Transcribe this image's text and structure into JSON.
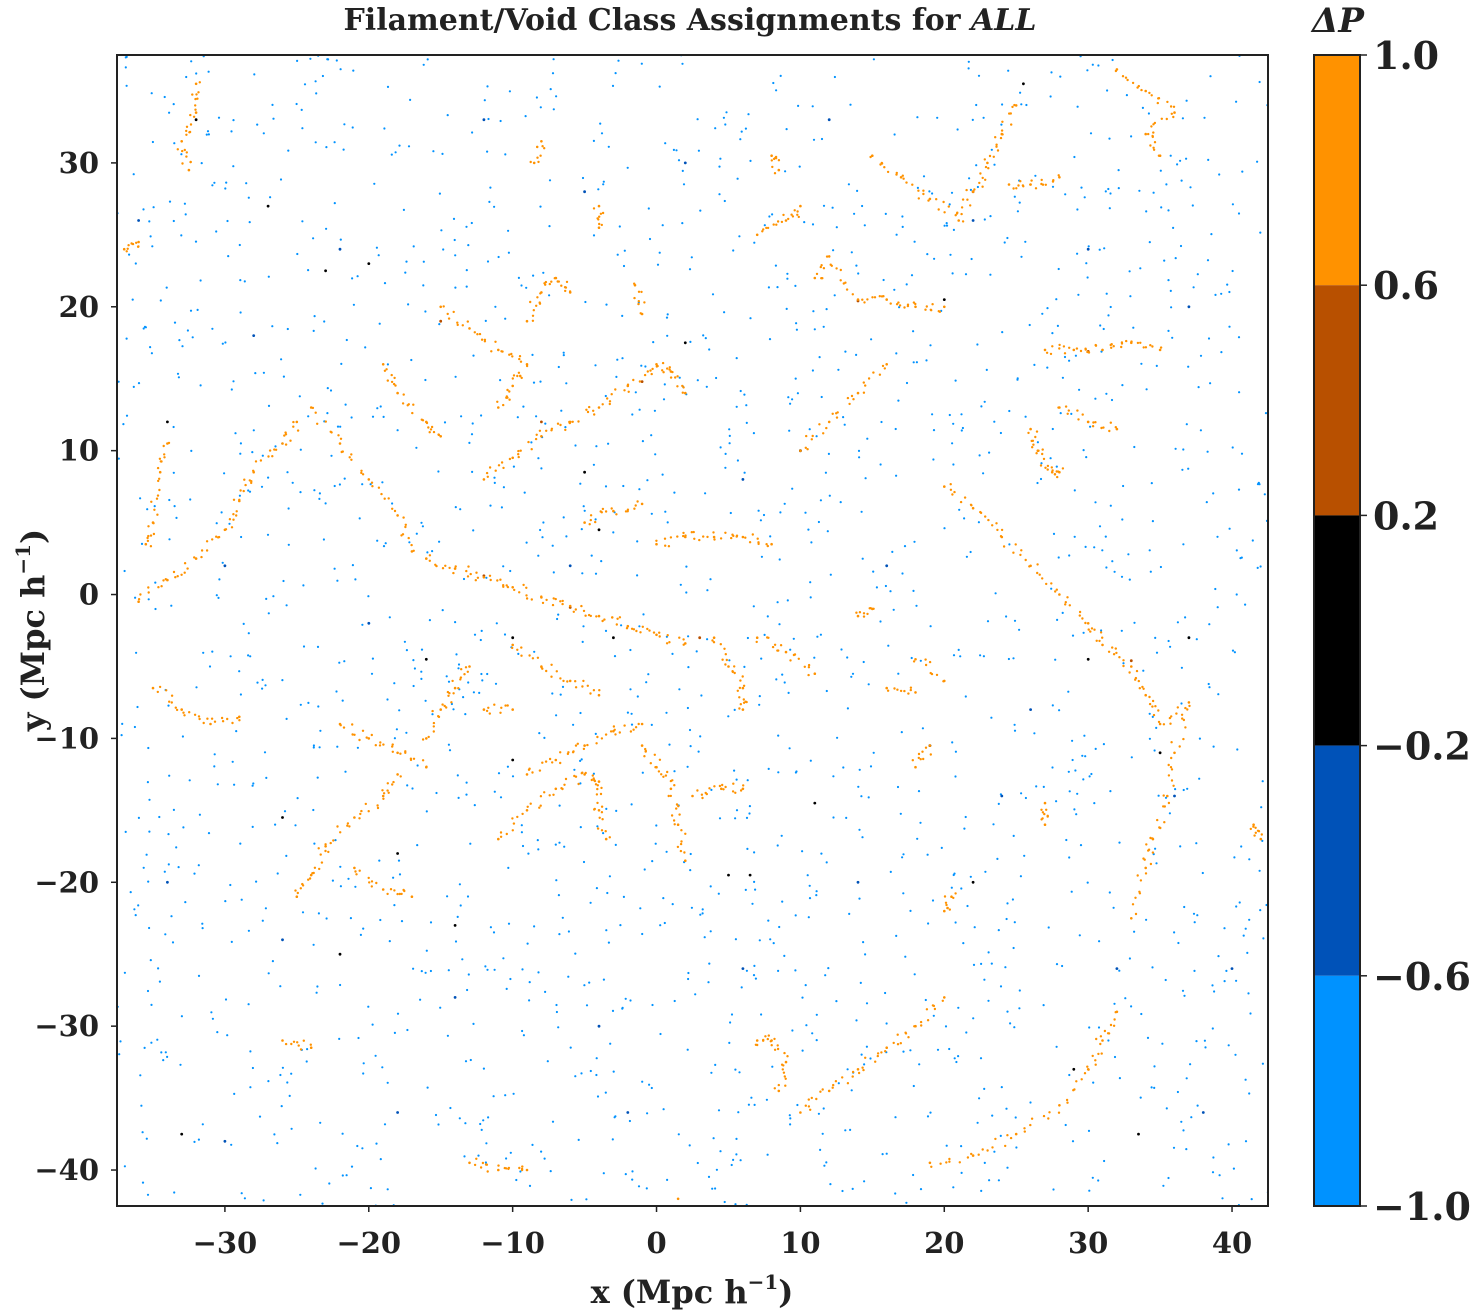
{
  "chart_data": {
    "type": "scatter",
    "title_prefix": "Filament/Void Class Assignments for ",
    "title_emph": "ALL",
    "xlabel": "x (Mpc h",
    "ylabel": "y (Mpc h",
    "label_exponent": "−1",
    "label_suffix": ")",
    "xlim": [
      -37.5,
      42.5
    ],
    "ylim": [
      -42.5,
      37.5
    ],
    "x_ticks": [
      -30,
      -20,
      -10,
      0,
      10,
      20,
      30,
      40
    ],
    "x_tick_labels": [
      "−30",
      "−20",
      "−10",
      "0",
      "10",
      "20",
      "30",
      "40"
    ],
    "y_ticks": [
      -40,
      -30,
      -20,
      -10,
      0,
      10,
      20,
      30
    ],
    "y_tick_labels": [
      "−40",
      "−30",
      "−20",
      "−10",
      "0",
      "10",
      "20",
      "30"
    ],
    "grid": false,
    "colorbar": {
      "label": "ΔP",
      "range": [
        -1.0,
        1.0
      ],
      "ticks": [
        1.0,
        0.6,
        0.2,
        -0.2,
        -0.6,
        -1.0
      ],
      "tick_labels": [
        "1.0",
        "0.6",
        "0.2",
        "−0.2",
        "−0.6",
        "−1.0"
      ],
      "bins": [
        {
          "from": 0.6,
          "to": 1.0,
          "color": "#ff9200"
        },
        {
          "from": 0.2,
          "to": 0.6,
          "color": "#b85000"
        },
        {
          "from": -0.2,
          "to": 0.2,
          "color": "#000000"
        },
        {
          "from": -0.6,
          "to": -0.2,
          "color": "#0052b8"
        },
        {
          "from": -1.0,
          "to": -0.6,
          "color": "#0092ff"
        }
      ]
    },
    "series": [
      {
        "class": "filament",
        "delta_p": 0.9,
        "color": "#ff9200",
        "points": [
          [
            -16,
            2.5
          ],
          [
            -14,
            1.8
          ],
          [
            -12,
            1.2
          ],
          [
            -10,
            0.5
          ],
          [
            -8,
            -0.2
          ],
          [
            -6,
            -0.8
          ],
          [
            -4,
            -1.5
          ],
          [
            -2,
            -2.2
          ],
          [
            0,
            -2.8
          ],
          [
            2,
            -3.4
          ],
          [
            -36,
            -0.5
          ],
          [
            -34,
            1.0
          ],
          [
            -32,
            2.5
          ],
          [
            -30,
            4.5
          ],
          [
            -29,
            6.5
          ],
          [
            -28,
            8.5
          ],
          [
            -26,
            10.5
          ],
          [
            -25,
            12.0
          ],
          [
            -35,
            -6.5
          ],
          [
            -33,
            -8.0
          ],
          [
            -31,
            -9.0
          ],
          [
            -29,
            -8.5
          ],
          [
            -12,
            8.0
          ],
          [
            -10,
            9.5
          ],
          [
            -8,
            11.0
          ],
          [
            -6,
            12.0
          ],
          [
            -4,
            13.0
          ],
          [
            -2,
            14.5
          ],
          [
            0,
            16.0
          ],
          [
            1,
            15.5
          ],
          [
            2,
            14.0
          ],
          [
            -15,
            20.0
          ],
          [
            -13,
            18.5
          ],
          [
            -11,
            17.0
          ],
          [
            -9,
            16.0
          ],
          [
            -10,
            14.5
          ],
          [
            -11,
            13.0
          ],
          [
            -9,
            19.0
          ],
          [
            -8,
            21.0
          ],
          [
            -7,
            22.0
          ],
          [
            -6,
            21.0
          ],
          [
            -19,
            16.0
          ],
          [
            -18,
            14.0
          ],
          [
            -16,
            12.0
          ],
          [
            -15,
            11.0
          ],
          [
            -24,
            13.0
          ],
          [
            -22,
            10.5
          ],
          [
            -20,
            8.0
          ],
          [
            -18,
            5.5
          ],
          [
            -17,
            3.0
          ],
          [
            -13,
            -5.0
          ],
          [
            -14,
            -6.5
          ],
          [
            -15,
            -8.0
          ],
          [
            -16,
            -10.0
          ],
          [
            -22,
            -9.0
          ],
          [
            -20,
            -10.0
          ],
          [
            -18,
            -11.0
          ],
          [
            -16,
            -12.0
          ],
          [
            -25,
            -21.0
          ],
          [
            -24,
            -19.5
          ],
          [
            -23,
            -17.5
          ],
          [
            -21,
            -15.5
          ],
          [
            -19,
            -14.0
          ],
          [
            -18,
            -12.5
          ],
          [
            -21,
            -19.0
          ],
          [
            -19,
            -20.5
          ],
          [
            -17,
            -21.0
          ],
          [
            -10,
            -3.5
          ],
          [
            -8,
            -5.0
          ],
          [
            -6,
            -6.0
          ],
          [
            -4,
            -7.0
          ],
          [
            -12,
            -8.0
          ],
          [
            -10,
            -8.0
          ],
          [
            -9,
            -12.5
          ],
          [
            -7,
            -11.5
          ],
          [
            -5,
            -10.5
          ],
          [
            -3,
            -9.5
          ],
          [
            -1,
            -9.0
          ],
          [
            -11,
            -17.0
          ],
          [
            -9,
            -15.0
          ],
          [
            -7,
            -13.5
          ],
          [
            -5,
            -12.5
          ],
          [
            -4,
            -13.0
          ],
          [
            -4,
            -15.0
          ],
          [
            -3.5,
            -17.0
          ],
          [
            -1,
            -10.5
          ],
          [
            0,
            -12.0
          ],
          [
            1,
            -13.5
          ],
          [
            1.5,
            -16.0
          ],
          [
            2,
            -18.5
          ],
          [
            2.5,
            -14.0
          ],
          [
            4.5,
            -13.5
          ],
          [
            6,
            -13.5
          ],
          [
            4,
            -3.0
          ],
          [
            5,
            -5.0
          ],
          [
            6,
            -6.5
          ],
          [
            6,
            -8.0
          ],
          [
            7,
            -3.0
          ],
          [
            9,
            -4.0
          ],
          [
            11,
            -5.5
          ],
          [
            0,
            3.5
          ],
          [
            2,
            4.0
          ],
          [
            4,
            4.0
          ],
          [
            6,
            4.0
          ],
          [
            8,
            3.5
          ],
          [
            -5,
            5.0
          ],
          [
            -3,
            5.8
          ],
          [
            -1,
            6.3
          ],
          [
            7,
            25.0
          ],
          [
            9,
            26.0
          ],
          [
            10,
            27.0
          ],
          [
            11,
            22.0
          ],
          [
            12,
            23.5
          ],
          [
            14,
            20.5
          ],
          [
            16,
            20.5
          ],
          [
            18,
            20.0
          ],
          [
            20,
            20.0
          ],
          [
            10,
            10.0
          ],
          [
            12,
            12.0
          ],
          [
            14,
            14.0
          ],
          [
            16,
            16.0
          ],
          [
            15,
            30.5
          ],
          [
            17,
            29.0
          ],
          [
            19,
            27.5
          ],
          [
            21,
            26.0
          ],
          [
            22,
            28.0
          ],
          [
            23,
            30.0
          ],
          [
            24,
            32.0
          ],
          [
            25,
            34.0
          ],
          [
            24.5,
            28.5
          ],
          [
            26,
            28.5
          ],
          [
            28,
            29.0
          ],
          [
            27,
            17.0
          ],
          [
            29,
            17.0
          ],
          [
            31,
            17.0
          ],
          [
            33,
            17.5
          ],
          [
            35,
            17.0
          ],
          [
            32,
            36.5
          ],
          [
            34,
            35.0
          ],
          [
            36,
            33.5
          ],
          [
            34,
            32.0
          ],
          [
            35,
            30.5
          ],
          [
            28,
            13.0
          ],
          [
            30,
            12.0
          ],
          [
            32,
            11.5
          ],
          [
            26,
            11.5
          ],
          [
            26.5,
            10.0
          ],
          [
            27.5,
            8.5
          ],
          [
            28,
            8.5
          ],
          [
            20,
            7.5
          ],
          [
            22,
            6.0
          ],
          [
            24,
            4.0
          ],
          [
            26,
            2.0
          ],
          [
            28,
            0.0
          ],
          [
            30,
            -2.0
          ],
          [
            31,
            -3.5
          ],
          [
            33,
            -5.0
          ],
          [
            34,
            -7.0
          ],
          [
            35,
            -9.0
          ],
          [
            37,
            -7.5
          ],
          [
            36,
            -11.0
          ],
          [
            35.5,
            -14.0
          ],
          [
            34.5,
            -17.0
          ],
          [
            34,
            -19.0
          ],
          [
            33,
            -22.5
          ],
          [
            20,
            -28.0
          ],
          [
            18,
            -30.0
          ],
          [
            16,
            -31.5
          ],
          [
            14,
            -33.0
          ],
          [
            12,
            -34.5
          ],
          [
            10,
            -36.0
          ],
          [
            19,
            -39.5
          ],
          [
            22,
            -39.0
          ],
          [
            25,
            -37.5
          ],
          [
            28,
            -35.5
          ],
          [
            30,
            -33.0
          ],
          [
            31,
            -31.0
          ],
          [
            32,
            -29.0
          ],
          [
            7,
            -31.0
          ],
          [
            8,
            -31.0
          ],
          [
            9,
            -32.5
          ],
          [
            8.5,
            -34.5
          ],
          [
            -26,
            -31.0
          ],
          [
            -24,
            -31.5
          ],
          [
            -13,
            -39.5
          ],
          [
            -11,
            -40.0
          ],
          [
            -9,
            -40.0
          ],
          [
            1.5,
            -42.0
          ],
          [
            -32,
            35.5
          ],
          [
            -32,
            33.5
          ],
          [
            -33,
            31.5
          ],
          [
            -32.5,
            29.5
          ],
          [
            -37,
            24.0
          ],
          [
            -36,
            24.5
          ],
          [
            -34,
            10.5
          ],
          [
            -34.5,
            8.5
          ],
          [
            -35,
            5.0
          ],
          [
            -35.5,
            3.5
          ],
          [
            -8,
            31.5
          ],
          [
            -8.5,
            30.0
          ],
          [
            -4,
            27.0
          ],
          [
            -4,
            25.5
          ],
          [
            -1.5,
            21.5
          ],
          [
            -1,
            19.5
          ],
          [
            8,
            30.5
          ],
          [
            8.5,
            29.5
          ],
          [
            18,
            -4.5
          ],
          [
            20,
            -6.0
          ],
          [
            14,
            -1.5
          ],
          [
            15,
            -1.0
          ],
          [
            18,
            -12.0
          ],
          [
            19,
            -10.5
          ],
          [
            27,
            -16.0
          ],
          [
            27,
            -14.5
          ],
          [
            20,
            -22.0
          ],
          [
            20.5,
            -21.0
          ],
          [
            41.5,
            -16.0
          ],
          [
            42,
            -17.0
          ],
          [
            16,
            -6.5
          ],
          [
            18,
            -6.8
          ]
        ]
      },
      {
        "class": "uncertain-filament",
        "delta_p": 0.4,
        "color": "#b85000",
        "points": [
          [
            -12,
            1.3
          ],
          [
            -6,
            -0.9
          ],
          [
            -1,
            14.8
          ],
          [
            -15,
            19.0
          ],
          [
            3,
            -3.0
          ],
          [
            22,
            28.0
          ],
          [
            30,
            16.9
          ],
          [
            33,
            -4.6
          ],
          [
            -8,
            12.0
          ],
          [
            14,
            20.4
          ]
        ]
      },
      {
        "class": "neutral",
        "delta_p": 0.0,
        "color": "#000000",
        "points": [
          [
            -20,
            23.0
          ],
          [
            -32,
            33.0
          ],
          [
            -27,
            27.0
          ],
          [
            25.5,
            35.5
          ],
          [
            -34,
            12.0
          ],
          [
            -23,
            22.5
          ],
          [
            -5,
            8.5
          ],
          [
            10,
            10.0
          ],
          [
            5,
            -19.5
          ],
          [
            6.5,
            -19.5
          ],
          [
            -3,
            -3.0
          ],
          [
            -10,
            -3.0
          ],
          [
            -16,
            -4.5
          ],
          [
            22,
            -20.0
          ],
          [
            29,
            -33.0
          ],
          [
            35,
            -11.0
          ],
          [
            30,
            -4.5
          ],
          [
            33.5,
            -37.5
          ],
          [
            -4,
            4.5
          ],
          [
            -22,
            -25.0
          ],
          [
            -18,
            -18.0
          ],
          [
            -26,
            -15.5
          ],
          [
            2,
            17.5
          ],
          [
            19,
            -10.5
          ],
          [
            11,
            -14.5
          ],
          [
            -33,
            -37.5
          ],
          [
            20,
            20.5
          ],
          [
            -14,
            -23.0
          ],
          [
            37,
            -3.0
          ],
          [
            -10,
            -11.5
          ]
        ]
      },
      {
        "class": "uncertain-void",
        "delta_p": -0.4,
        "color": "#0052b8",
        "points": [
          [
            -36,
            26.0
          ],
          [
            -28,
            18.0
          ],
          [
            -22,
            24.0
          ],
          [
            -12,
            33.0
          ],
          [
            -5,
            28.0
          ],
          [
            2,
            30.0
          ],
          [
            12,
            33.0
          ],
          [
            22,
            26.0
          ],
          [
            30,
            24.0
          ],
          [
            37,
            20.0
          ],
          [
            -30,
            2.0
          ],
          [
            -20,
            -2.0
          ],
          [
            -6,
            2.0
          ],
          [
            6,
            8.0
          ],
          [
            16,
            2.0
          ],
          [
            26,
            -8.0
          ],
          [
            36,
            -14.0
          ],
          [
            40,
            -26.0
          ],
          [
            -34,
            -20.0
          ],
          [
            -26,
            -24.0
          ],
          [
            -14,
            -28.0
          ],
          [
            -4,
            -30.0
          ],
          [
            6,
            -26.0
          ],
          [
            14,
            -20.0
          ],
          [
            24,
            -14.0
          ],
          [
            32,
            -26.0
          ],
          [
            -30,
            -38.0
          ],
          [
            -18,
            -36.0
          ],
          [
            -2,
            -36.0
          ],
          [
            38,
            -36.0
          ]
        ]
      },
      {
        "class": "void",
        "delta_p": -0.9,
        "color": "#0092ff",
        "generated": true,
        "count": 1900,
        "seed": 7
      }
    ]
  }
}
